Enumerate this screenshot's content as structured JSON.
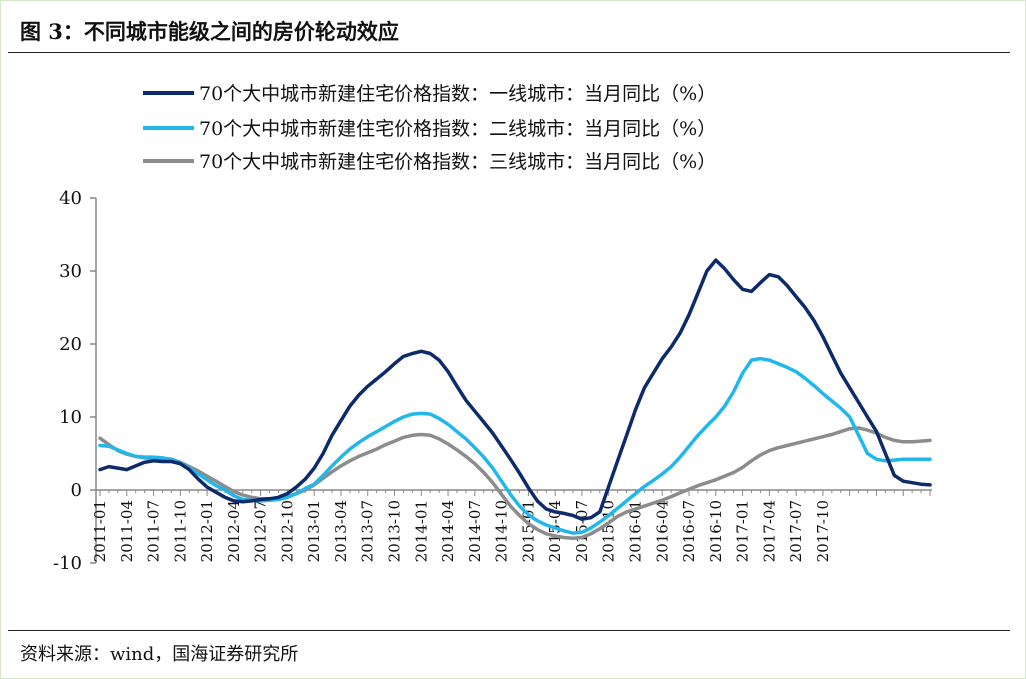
{
  "title": "图 3：不同城市能级之间的房价轮动效应",
  "source": "资料来源：wind，国海证券研究所",
  "chart_data": {
    "type": "line",
    "ylim": [
      -10,
      40
    ],
    "yticks": [
      -10,
      0,
      10,
      20,
      30,
      40
    ],
    "x_tick_labels": [
      "2011-01",
      "2011-04",
      "2011-07",
      "2011-10",
      "2012-01",
      "2012-04",
      "2012-07",
      "2012-10",
      "2013-01",
      "2013-04",
      "2013-07",
      "2013-10",
      "2014-01",
      "2014-04",
      "2014-07",
      "2014-10",
      "2015-01",
      "2015-04",
      "2015-07",
      "2015-10",
      "2016-01",
      "2016-04",
      "2016-07",
      "2016-10",
      "2017-01",
      "2017-04",
      "2017-07",
      "2017-10"
    ],
    "legend_position": "top",
    "grid": false,
    "series": [
      {
        "name": "70个大中城市新建住宅价格指数：一线城市：当月同比（%）",
        "color": "#0d2a6b",
        "values": [
          2.8,
          3.2,
          3.0,
          2.8,
          3.3,
          3.8,
          4.0,
          3.9,
          3.9,
          3.6,
          2.8,
          1.5,
          0.4,
          -0.3,
          -1.0,
          -1.5,
          -1.6,
          -1.5,
          -1.3,
          -1.2,
          -1.0,
          -0.5,
          0.4,
          1.5,
          3.0,
          5.0,
          7.5,
          9.5,
          11.5,
          13.0,
          14.2,
          15.2,
          16.2,
          17.3,
          18.3,
          18.7,
          19.0,
          18.7,
          17.8,
          16.2,
          14.2,
          12.3,
          10.8,
          9.3,
          7.8,
          6.0,
          4.2,
          2.3,
          0.3,
          -1.5,
          -2.6,
          -3.0,
          -3.2,
          -3.5,
          -4.0,
          -3.8,
          -3.0,
          0.5,
          4.0,
          7.5,
          11.0,
          14.0,
          16.0,
          18.0,
          19.6,
          21.5,
          24.0,
          27.0,
          30.0,
          31.5,
          30.3,
          28.8,
          27.5,
          27.2,
          28.4,
          29.5,
          29.2,
          28.0,
          26.5,
          25.0,
          23.2,
          21.0,
          18.5,
          16.0,
          14.0,
          12.0,
          10.0,
          8.0,
          5.0,
          2.0,
          1.2,
          1.0,
          0.8,
          0.7
        ]
      },
      {
        "name": "70个大中城市新建住宅价格指数：二线城市：当月同比（%）",
        "color": "#22b7ea",
        "values": [
          6.1,
          6.0,
          5.5,
          5.0,
          4.6,
          4.5,
          4.5,
          4.4,
          4.2,
          3.7,
          3.0,
          2.2,
          1.4,
          0.6,
          0.0,
          -0.8,
          -1.3,
          -1.4,
          -1.5,
          -1.4,
          -1.3,
          -1.0,
          -0.5,
          0.2,
          0.8,
          2.0,
          3.3,
          4.5,
          5.6,
          6.5,
          7.3,
          8.0,
          8.7,
          9.4,
          10.0,
          10.4,
          10.5,
          10.4,
          9.8,
          9.0,
          8.0,
          7.0,
          5.8,
          4.5,
          3.0,
          1.2,
          -0.6,
          -2.2,
          -3.4,
          -4.2,
          -4.8,
          -5.2,
          -5.6,
          -5.9,
          -5.8,
          -5.2,
          -4.4,
          -3.5,
          -2.5,
          -1.5,
          -0.5,
          0.5,
          1.3,
          2.2,
          3.2,
          4.5,
          6.0,
          7.5,
          8.8,
          10.0,
          11.5,
          13.5,
          16.0,
          17.8,
          18.0,
          17.8,
          17.3,
          16.8,
          16.2,
          15.3,
          14.3,
          13.2,
          12.2,
          11.2,
          10.0,
          7.5,
          5.0,
          4.2,
          4.0,
          4.1,
          4.2,
          4.2,
          4.2,
          4.2
        ]
      },
      {
        "name": "70个大中城市新建住宅价格指数：三线城市：当月同比（%）",
        "color": "#8c8c8c",
        "values": [
          7.1,
          6.2,
          5.4,
          4.9,
          4.6,
          4.4,
          4.3,
          4.3,
          4.2,
          3.8,
          3.2,
          2.6,
          1.9,
          1.2,
          0.5,
          -0.2,
          -0.7,
          -1.0,
          -1.2,
          -1.2,
          -1.1,
          -0.9,
          -0.5,
          0.0,
          0.7,
          1.6,
          2.5,
          3.3,
          4.0,
          4.6,
          5.1,
          5.6,
          6.2,
          6.7,
          7.2,
          7.5,
          7.6,
          7.5,
          7.0,
          6.3,
          5.5,
          4.6,
          3.6,
          2.4,
          1.0,
          -0.6,
          -2.2,
          -3.5,
          -4.6,
          -5.4,
          -6.0,
          -6.3,
          -6.5,
          -6.6,
          -6.5,
          -6.0,
          -5.3,
          -4.5,
          -3.6,
          -3.0,
          -2.6,
          -2.2,
          -1.8,
          -1.4,
          -0.9,
          -0.4,
          0.1,
          0.6,
          1.0,
          1.4,
          1.9,
          2.4,
          3.1,
          4.0,
          4.8,
          5.4,
          5.8,
          6.1,
          6.4,
          6.7,
          7.0,
          7.3,
          7.6,
          8.0,
          8.4,
          8.5,
          8.2,
          7.8,
          7.2,
          6.8,
          6.6,
          6.6,
          6.7,
          6.8
        ]
      }
    ]
  }
}
